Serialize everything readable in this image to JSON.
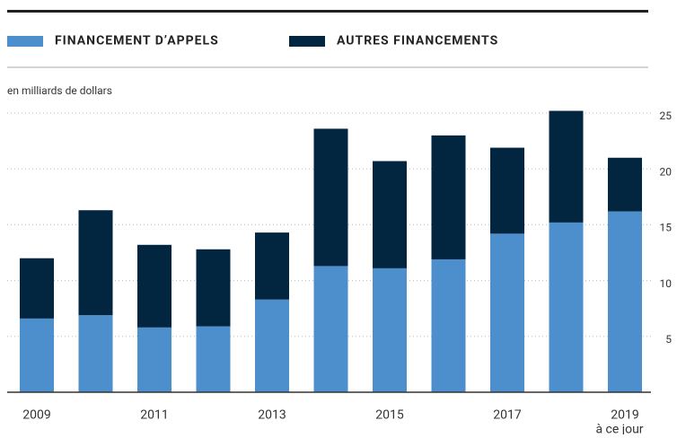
{
  "chart_data": {
    "type": "stacked_bar",
    "ylabel": "en milliards de dollars",
    "categories": [
      "2009",
      null,
      "2011",
      null,
      "2013",
      null,
      "2015",
      null,
      "2017",
      null,
      "2019"
    ],
    "category_note": "à ce jour",
    "series": [
      {
        "name": "FINANCEMENT D’APPELS",
        "color": "#4d8fcc",
        "values": [
          6.6,
          6.9,
          5.8,
          5.9,
          8.3,
          11.3,
          11.1,
          11.9,
          14.2,
          15.2,
          16.2
        ]
      },
      {
        "name": "AUTRES FINANCEMENTS",
        "color": "#032640",
        "values": [
          5.4,
          9.4,
          7.4,
          6.9,
          6.0,
          12.3,
          9.6,
          11.1,
          7.7,
          10.0,
          4.8
        ]
      }
    ],
    "ylim": [
      0,
      25
    ],
    "yticks": [
      5,
      10,
      15,
      20,
      25
    ],
    "grid": true
  }
}
